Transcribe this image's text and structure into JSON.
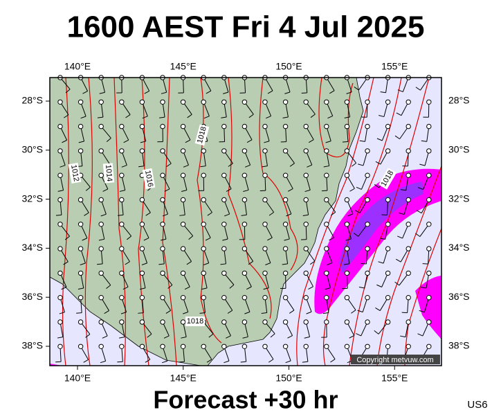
{
  "map": {
    "title": "1600 AEST Fri 4 Jul 2025",
    "footer": "Forecast +30 hr",
    "model": "US6",
    "copyright": "Copyright metvuw.com",
    "lon_ticks": [
      {
        "value": 140,
        "label": "140°E"
      },
      {
        "value": 145,
        "label": "145°E"
      },
      {
        "value": 150,
        "label": "150°E"
      },
      {
        "value": 155,
        "label": "155°E"
      }
    ],
    "lat_ticks": [
      {
        "value": -28,
        "label": "28°S"
      },
      {
        "value": -30,
        "label": "30°S"
      },
      {
        "value": -32,
        "label": "32°S"
      },
      {
        "value": -34,
        "label": "34°S"
      },
      {
        "value": -36,
        "label": "36°S"
      },
      {
        "value": -38,
        "label": "38°S"
      }
    ],
    "isobar_labels": [
      1012,
      1014,
      1016,
      1018,
      1018,
      1018
    ]
  }
}
